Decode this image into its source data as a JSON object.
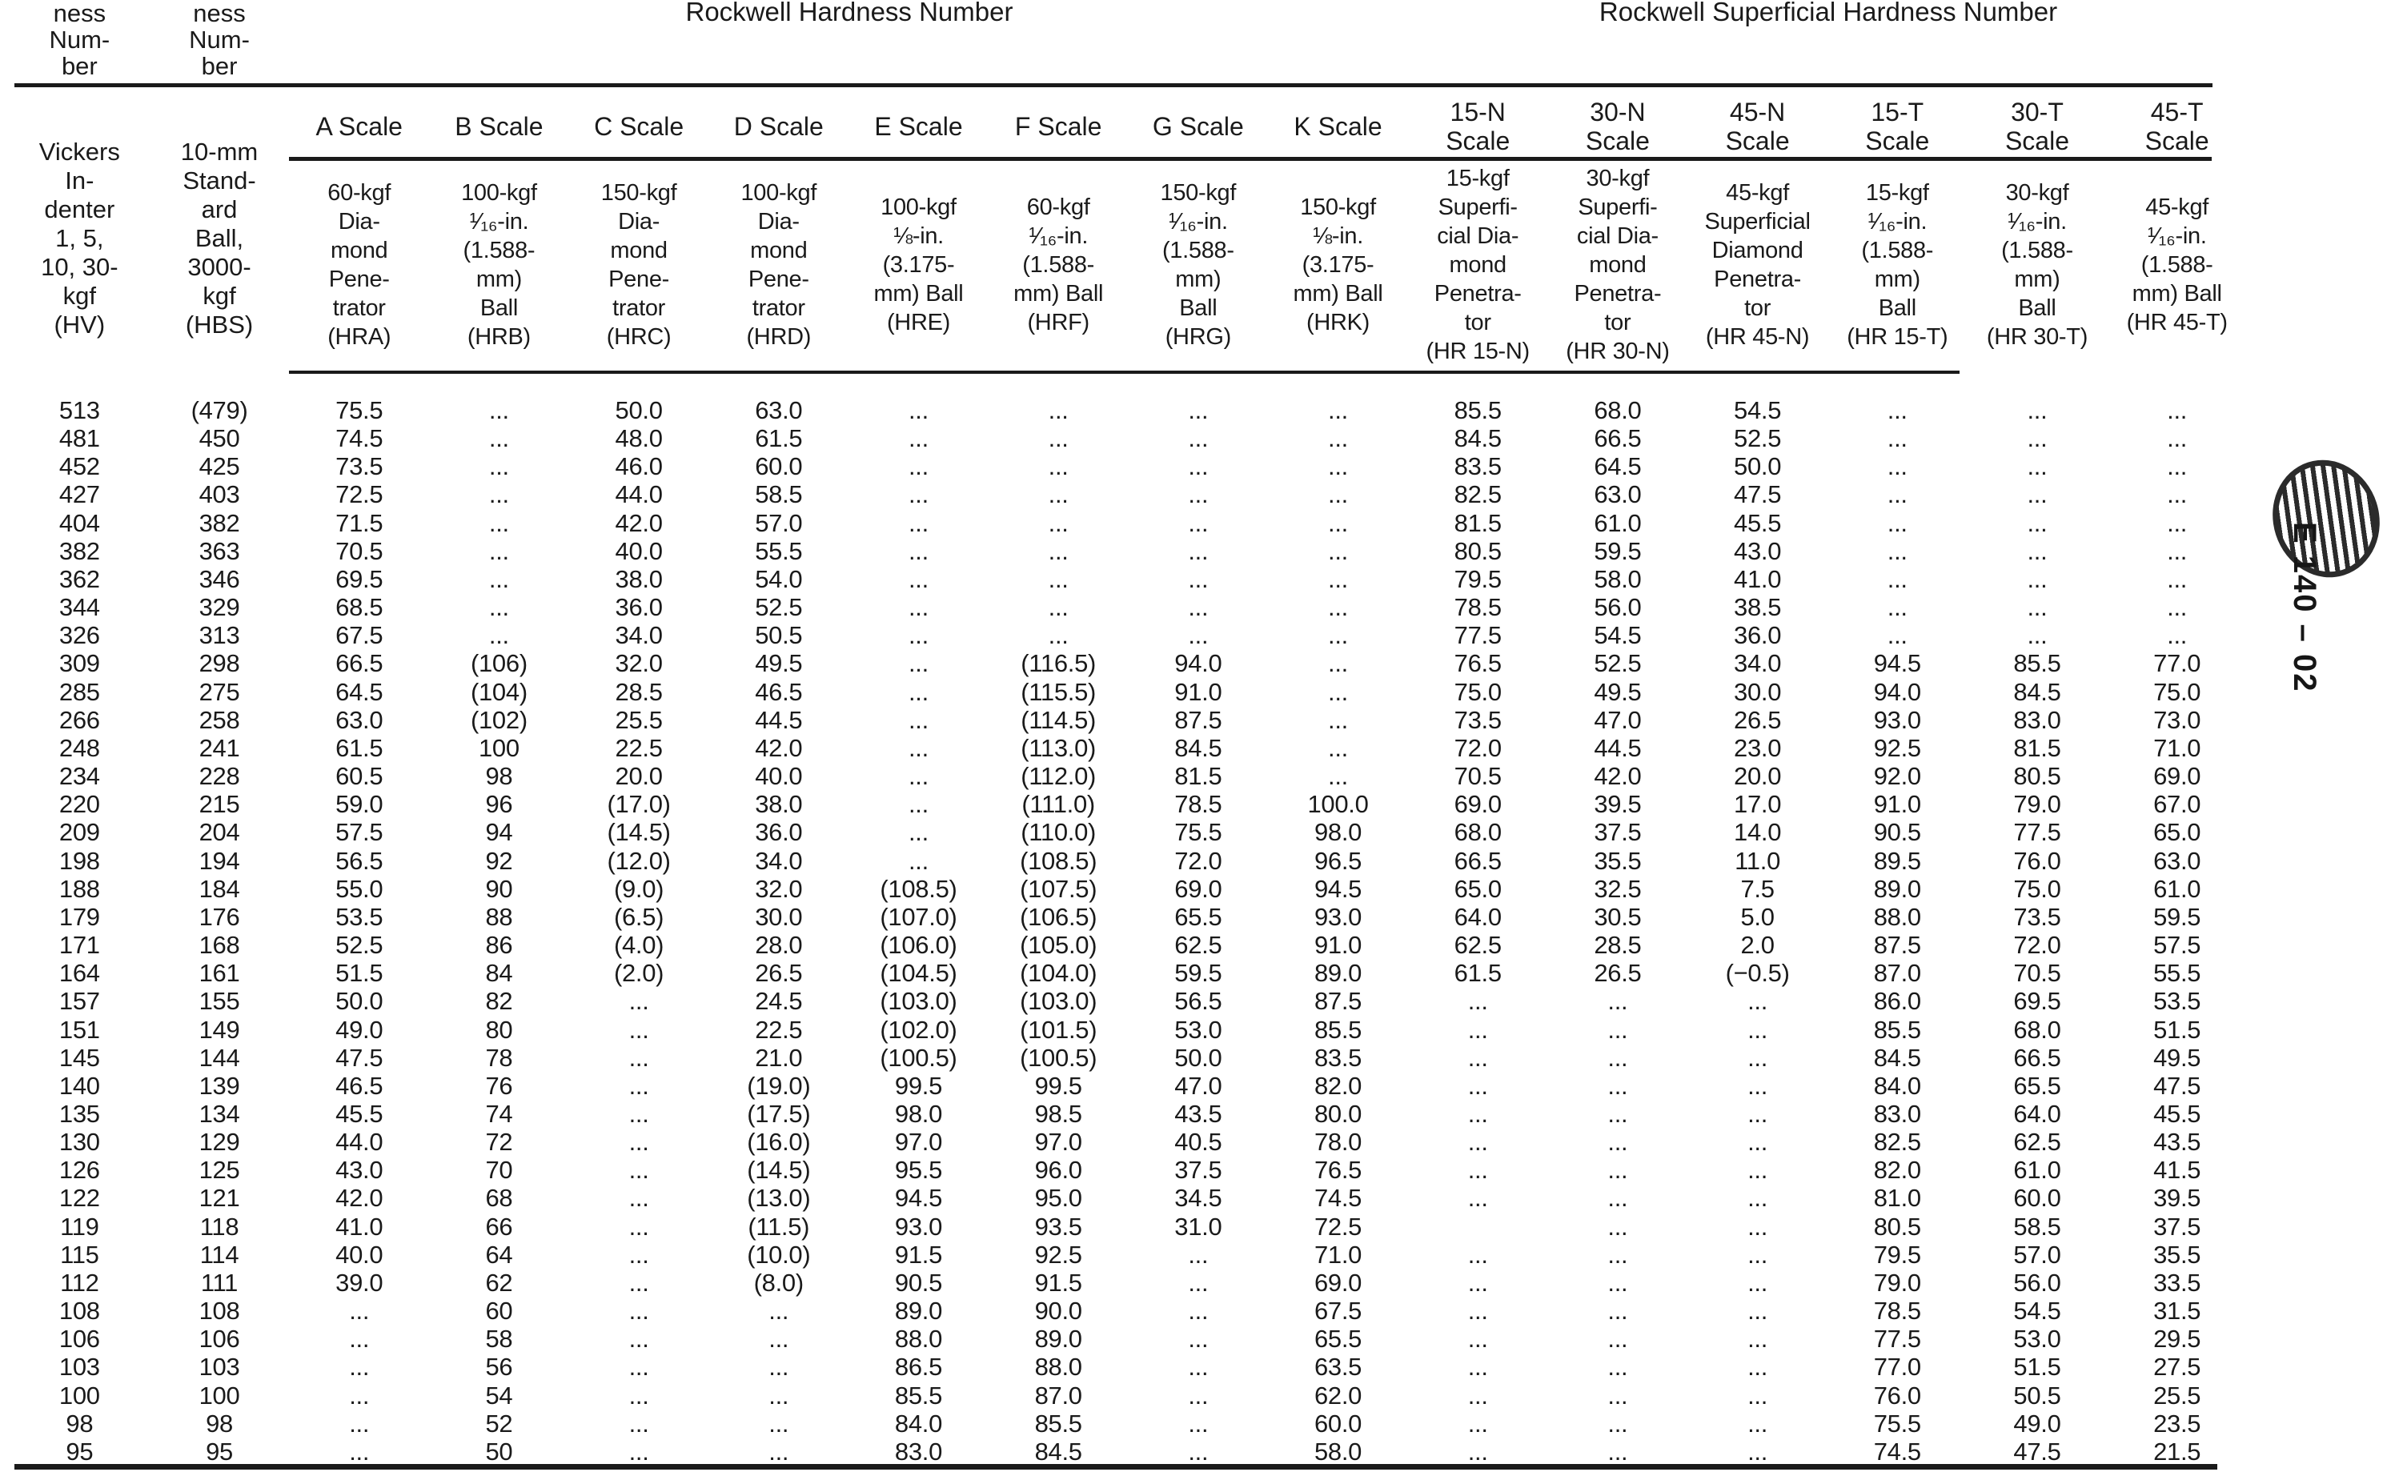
{
  "page": {
    "background": "#ffffff",
    "text_color": "#1a1a1a"
  },
  "table": {
    "continued_stub_header": "ness\nNum-\nber",
    "group_headers": {
      "rockwell": "Rockwell Hardness Number",
      "superficial": "Rockwell Superficial Hardness Number"
    },
    "columns": [
      {
        "id": "hv",
        "scale": "",
        "descriptor": "Vickers\nIn-\ndenter\n1, 5,\n10, 30-\nkgf\n(HV)"
      },
      {
        "id": "hbs",
        "scale": "",
        "descriptor": "10-mm\nStand-\nard\nBall,\n3000-\nkgf\n(HBS)"
      },
      {
        "id": "hra",
        "scale": "A Scale",
        "descriptor": "60-kgf\nDia-\nmond\nPene-\ntrator\n(HRA)"
      },
      {
        "id": "hrb",
        "scale": "B Scale",
        "descriptor": "100-kgf\n¹⁄₁₆-in.\n(1.588-\nmm)\nBall\n(HRB)"
      },
      {
        "id": "hrc",
        "scale": "C Scale",
        "descriptor": "150-kgf\nDia-\nmond\nPene-\ntrator\n(HRC)"
      },
      {
        "id": "hrd",
        "scale": "D Scale",
        "descriptor": "100-kgf\nDia-\nmond\nPene-\ntrator\n(HRD)"
      },
      {
        "id": "hre",
        "scale": "E Scale",
        "descriptor": "100-kgf\n⅛-in.\n(3.175-\nmm) Ball\n(HRE)"
      },
      {
        "id": "hrf",
        "scale": "F Scale",
        "descriptor": "60-kgf\n¹⁄₁₆-in.\n(1.588-\nmm) Ball\n(HRF)"
      },
      {
        "id": "hrg",
        "scale": "G Scale",
        "descriptor": "150-kgf\n¹⁄₁₆-in.\n(1.588-\nmm)\nBall\n(HRG)"
      },
      {
        "id": "hrk",
        "scale": "K Scale",
        "descriptor": "150-kgf\n⅛-in.\n(3.175-\nmm) Ball\n(HRK)"
      },
      {
        "id": "hr15n",
        "scale": "15-N\nScale",
        "descriptor": "15-kgf\nSuperfi-\ncial Dia-\nmond\nPenetra-\ntor\n(HR 15-N)"
      },
      {
        "id": "hr30n",
        "scale": "30-N\nScale",
        "descriptor": "30-kgf\nSuperfi-\ncial Dia-\nmond\nPenetra-\ntor\n(HR 30-N)"
      },
      {
        "id": "hr45n",
        "scale": "45-N\nScale",
        "descriptor": "45-kgf\nSuperficial\nDiamond\nPenetra-\ntor\n(HR 45-N)"
      },
      {
        "id": "hr15t",
        "scale": "15-T\nScale",
        "descriptor": "15-kgf\n¹⁄₁₆-in.\n(1.588-\nmm)\nBall\n(HR 15-T)"
      },
      {
        "id": "hr30t",
        "scale": "30-T\nScale",
        "descriptor": "30-kgf\n¹⁄₁₆-in.\n(1.588-\nmm)\nBall\n(HR 30-T)"
      },
      {
        "id": "hr45t",
        "scale": "45-T\nScale",
        "descriptor": "45-kgf\n¹⁄₁₆-in.\n(1.588-\nmm) Ball\n(HR 45-T)"
      }
    ],
    "rows": [
      [
        "513",
        "(479)",
        "75.5",
        "...",
        "50.0",
        "63.0",
        "...",
        "...",
        "...",
        "...",
        "85.5",
        "68.0",
        "54.5",
        "...",
        "...",
        "..."
      ],
      [
        "481",
        "450",
        "74.5",
        "...",
        "48.0",
        "61.5",
        "...",
        "...",
        "...",
        "...",
        "84.5",
        "66.5",
        "52.5",
        "...",
        "...",
        "..."
      ],
      [
        "452",
        "425",
        "73.5",
        "...",
        "46.0",
        "60.0",
        "...",
        "...",
        "...",
        "...",
        "83.5",
        "64.5",
        "50.0",
        "...",
        "...",
        "..."
      ],
      [
        "427",
        "403",
        "72.5",
        "...",
        "44.0",
        "58.5",
        "...",
        "...",
        "...",
        "...",
        "82.5",
        "63.0",
        "47.5",
        "...",
        "...",
        "..."
      ],
      [
        "404",
        "382",
        "71.5",
        "...",
        "42.0",
        "57.0",
        "...",
        "...",
        "...",
        "...",
        "81.5",
        "61.0",
        "45.5",
        "...",
        "...",
        "..."
      ],
      [
        "382",
        "363",
        "70.5",
        "...",
        "40.0",
        "55.5",
        "...",
        "...",
        "...",
        "...",
        "80.5",
        "59.5",
        "43.0",
        "...",
        "...",
        "..."
      ],
      [
        "362",
        "346",
        "69.5",
        "...",
        "38.0",
        "54.0",
        "...",
        "...",
        "...",
        "...",
        "79.5",
        "58.0",
        "41.0",
        "...",
        "...",
        "..."
      ],
      [
        "344",
        "329",
        "68.5",
        "...",
        "36.0",
        "52.5",
        "...",
        "...",
        "...",
        "...",
        "78.5",
        "56.0",
        "38.5",
        "...",
        "...",
        "..."
      ],
      [
        "326",
        "313",
        "67.5",
        "...",
        "34.0",
        "50.5",
        "...",
        "...",
        "...",
        "...",
        "77.5",
        "54.5",
        "36.0",
        "...",
        "...",
        "..."
      ],
      [
        "309",
        "298",
        "66.5",
        "(106)",
        "32.0",
        "49.5",
        "...",
        "(116.5)",
        "94.0",
        "...",
        "76.5",
        "52.5",
        "34.0",
        "94.5",
        "85.5",
        "77.0"
      ],
      [
        "285",
        "275",
        "64.5",
        "(104)",
        "28.5",
        "46.5",
        "...",
        "(115.5)",
        "91.0",
        "...",
        "75.0",
        "49.5",
        "30.0",
        "94.0",
        "84.5",
        "75.0"
      ],
      [
        "266",
        "258",
        "63.0",
        "(102)",
        "25.5",
        "44.5",
        "...",
        "(114.5)",
        "87.5",
        "...",
        "73.5",
        "47.0",
        "26.5",
        "93.0",
        "83.0",
        "73.0"
      ],
      [
        "248",
        "241",
        "61.5",
        "100",
        "22.5",
        "42.0",
        "...",
        "(113.0)",
        "84.5",
        "...",
        "72.0",
        "44.5",
        "23.0",
        "92.5",
        "81.5",
        "71.0"
      ],
      [
        "234",
        "228",
        "60.5",
        "98",
        "20.0",
        "40.0",
        "...",
        "(112.0)",
        "81.5",
        "...",
        "70.5",
        "42.0",
        "20.0",
        "92.0",
        "80.5",
        "69.0"
      ],
      [
        "220",
        "215",
        "59.0",
        "96",
        "(17.0)",
        "38.0",
        "...",
        "(111.0)",
        "78.5",
        "100.0",
        "69.0",
        "39.5",
        "17.0",
        "91.0",
        "79.0",
        "67.0"
      ],
      [
        "209",
        "204",
        "57.5",
        "94",
        "(14.5)",
        "36.0",
        "...",
        "(110.0)",
        "75.5",
        "98.0",
        "68.0",
        "37.5",
        "14.0",
        "90.5",
        "77.5",
        "65.0"
      ],
      [
        "198",
        "194",
        "56.5",
        "92",
        "(12.0)",
        "34.0",
        "...",
        "(108.5)",
        "72.0",
        "96.5",
        "66.5",
        "35.5",
        "11.0",
        "89.5",
        "76.0",
        "63.0"
      ],
      [
        "188",
        "184",
        "55.0",
        "90",
        "(9.0)",
        "32.0",
        "(108.5)",
        "(107.5)",
        "69.0",
        "94.5",
        "65.0",
        "32.5",
        "7.5",
        "89.0",
        "75.0",
        "61.0"
      ],
      [
        "179",
        "176",
        "53.5",
        "88",
        "(6.5)",
        "30.0",
        "(107.0)",
        "(106.5)",
        "65.5",
        "93.0",
        "64.0",
        "30.5",
        "5.0",
        "88.0",
        "73.5",
        "59.5"
      ],
      [
        "171",
        "168",
        "52.5",
        "86",
        "(4.0)",
        "28.0",
        "(106.0)",
        "(105.0)",
        "62.5",
        "91.0",
        "62.5",
        "28.5",
        "2.0",
        "87.5",
        "72.0",
        "57.5"
      ],
      [
        "164",
        "161",
        "51.5",
        "84",
        "(2.0)",
        "26.5",
        "(104.5)",
        "(104.0)",
        "59.5",
        "89.0",
        "61.5",
        "26.5",
        "(−0.5)",
        "87.0",
        "70.5",
        "55.5"
      ],
      [
        "157",
        "155",
        "50.0",
        "82",
        "...",
        "24.5",
        "(103.0)",
        "(103.0)",
        "56.5",
        "87.5",
        "...",
        "...",
        "...",
        "86.0",
        "69.5",
        "53.5"
      ],
      [
        "151",
        "149",
        "49.0",
        "80",
        "...",
        "22.5",
        "(102.0)",
        "(101.5)",
        "53.0",
        "85.5",
        "...",
        "...",
        "...",
        "85.5",
        "68.0",
        "51.5"
      ],
      [
        "145",
        "144",
        "47.5",
        "78",
        "...",
        "21.0",
        "(100.5)",
        "(100.5)",
        "50.0",
        "83.5",
        "...",
        "...",
        "...",
        "84.5",
        "66.5",
        "49.5"
      ],
      [
        "140",
        "139",
        "46.5",
        "76",
        "...",
        "(19.0)",
        "99.5",
        "99.5",
        "47.0",
        "82.0",
        "...",
        "...",
        "...",
        "84.0",
        "65.5",
        "47.5"
      ],
      [
        "135",
        "134",
        "45.5",
        "74",
        "...",
        "(17.5)",
        "98.0",
        "98.5",
        "43.5",
        "80.0",
        "...",
        "...",
        "...",
        "83.0",
        "64.0",
        "45.5"
      ],
      [
        "130",
        "129",
        "44.0",
        "72",
        "...",
        "(16.0)",
        "97.0",
        "97.0",
        "40.5",
        "78.0",
        "...",
        "...",
        "...",
        "82.5",
        "62.5",
        "43.5"
      ],
      [
        "126",
        "125",
        "43.0",
        "70",
        "...",
        "(14.5)",
        "95.5",
        "96.0",
        "37.5",
        "76.5",
        "...",
        "...",
        "...",
        "82.0",
        "61.0",
        "41.5"
      ],
      [
        "122",
        "121",
        "42.0",
        "68",
        "...",
        "(13.0)",
        "94.5",
        "95.0",
        "34.5",
        "74.5",
        "...",
        "...",
        "...",
        "81.0",
        "60.0",
        "39.5"
      ],
      [
        "119",
        "118",
        "41.0",
        "66",
        "...",
        "(11.5)",
        "93.0",
        "93.5",
        "31.0",
        "72.5",
        "",
        "...",
        "...",
        "80.5",
        "58.5",
        "37.5"
      ],
      [
        "115",
        "114",
        "40.0",
        "64",
        "...",
        "(10.0)",
        "91.5",
        "92.5",
        "...",
        "71.0",
        "...",
        "...",
        "...",
        "79.5",
        "57.0",
        "35.5"
      ],
      [
        "112",
        "111",
        "39.0",
        "62",
        "...",
        "(8.0)",
        "90.5",
        "91.5",
        "...",
        "69.0",
        "...",
        "...",
        "...",
        "79.0",
        "56.0",
        "33.5"
      ],
      [
        "108",
        "108",
        "...",
        "60",
        "...",
        "...",
        "89.0",
        "90.0",
        "...",
        "67.5",
        "...",
        "...",
        "...",
        "78.5",
        "54.5",
        "31.5"
      ],
      [
        "106",
        "106",
        "...",
        "58",
        "...",
        "...",
        "88.0",
        "89.0",
        "...",
        "65.5",
        "...",
        "...",
        "...",
        "77.5",
        "53.0",
        "29.5"
      ],
      [
        "103",
        "103",
        "...",
        "56",
        "...",
        "...",
        "86.5",
        "88.0",
        "...",
        "63.5",
        "...",
        "...",
        "...",
        "77.0",
        "51.5",
        "27.5"
      ],
      [
        "100",
        "100",
        "...",
        "54",
        "...",
        "...",
        "85.5",
        "87.0",
        "...",
        "62.0",
        "...",
        "...",
        "...",
        "76.0",
        "50.5",
        "25.5"
      ],
      [
        "98",
        "98",
        "...",
        "52",
        "...",
        "...",
        "84.0",
        "85.5",
        "...",
        "60.0",
        "...",
        "...",
        "...",
        "75.5",
        "49.0",
        "23.5"
      ],
      [
        "95",
        "95",
        "...",
        "50",
        "...",
        "...",
        "83.0",
        "84.5",
        "...",
        "58.0",
        "...",
        "...",
        "...",
        "74.5",
        "47.5",
        "21.5"
      ]
    ]
  },
  "stamp": {
    "vertical_label": "E 140 – 02"
  }
}
